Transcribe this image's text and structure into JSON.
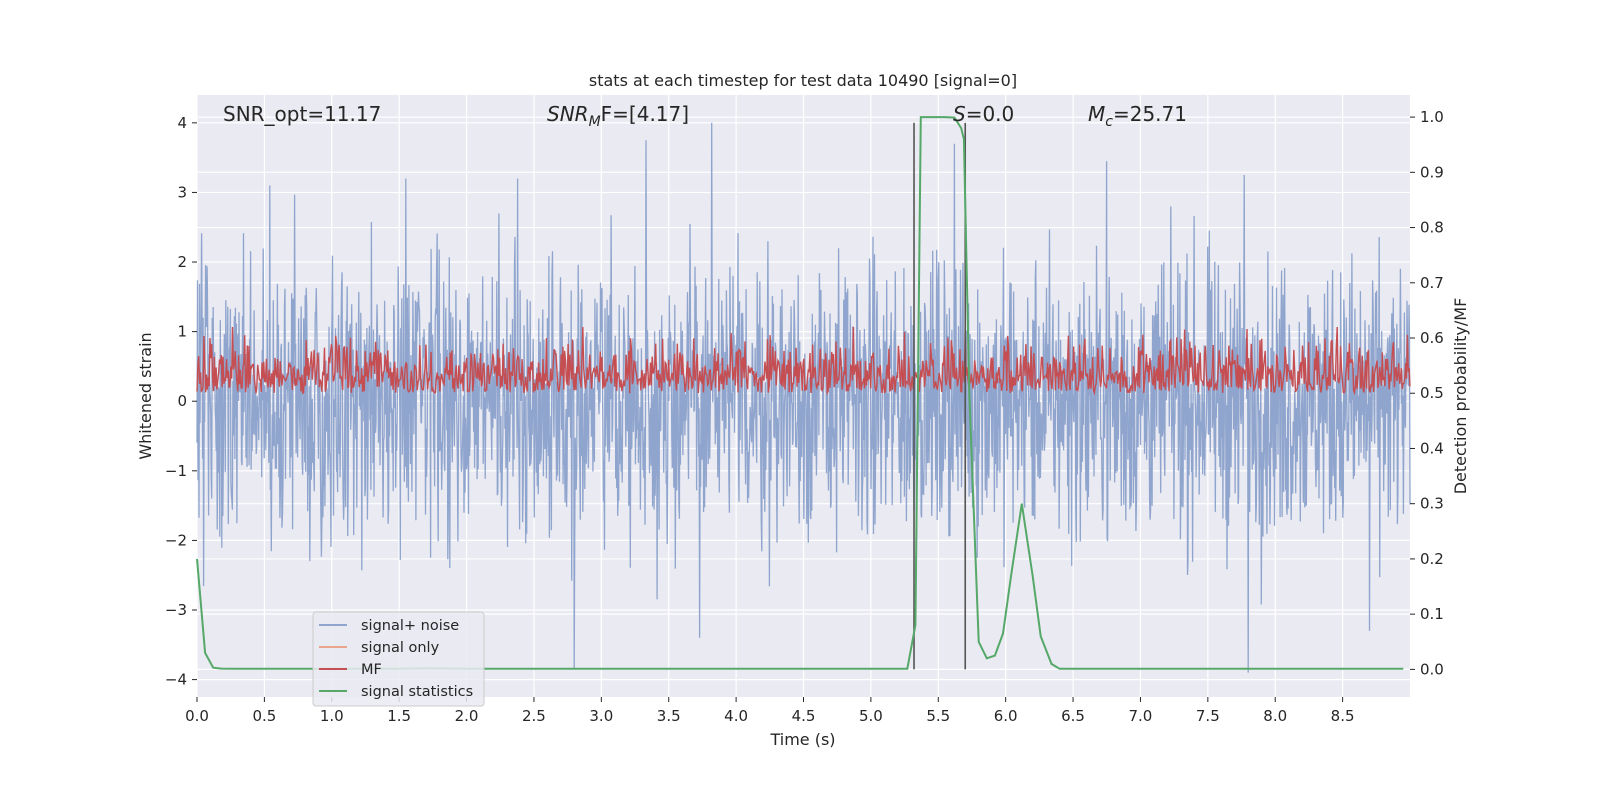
{
  "chart_data": {
    "type": "line",
    "title": "stats at each timestep for test data 10490 [signal=0]",
    "xlabel": "Time (s)",
    "ylabel_left": "Whitened strain",
    "ylabel_right": "Detection probability/MF",
    "xlim": [
      0.0,
      9.0
    ],
    "ylim_left": [
      -4.25,
      4.4
    ],
    "ylim_right": [
      -0.05,
      1.04
    ],
    "x_ticks": [
      "0.0",
      "0.5",
      "1.0",
      "1.5",
      "2.0",
      "2.5",
      "3.0",
      "3.5",
      "4.0",
      "4.5",
      "5.0",
      "5.5",
      "6.0",
      "6.5",
      "7.0",
      "7.5",
      "8.0",
      "8.5"
    ],
    "y_ticks_left": [
      4,
      3,
      2,
      1,
      0,
      -1,
      -2,
      -3,
      -4
    ],
    "y_ticks_right": [
      "1.0",
      "0.9",
      "0.8",
      "0.7",
      "0.6",
      "0.5",
      "0.4",
      "0.3",
      "0.2",
      "0.1",
      "0.0"
    ],
    "grid": true,
    "annotations": {
      "snr_opt": "SNR_opt=11.17",
      "snr_mf_main": "SNR",
      "snr_mf_sub": "M",
      "snr_mf_rest": "F=[4.17]",
      "s_main": "S",
      "s_rest": "=0.0",
      "mc_main": "M",
      "mc_sub": "c",
      "mc_rest": "=25.71"
    },
    "legend": {
      "placement": "lower-left",
      "entries": [
        {
          "label": "signal+ noise",
          "color": "#8fa5cd"
        },
        {
          "label": "signal only",
          "color": "#e8a58c"
        },
        {
          "label": "MF",
          "color": "#c44e52"
        },
        {
          "label": "signal statistics",
          "color": "#55a868"
        }
      ]
    },
    "series": [
      {
        "name": "signal+ noise",
        "axis": "left",
        "color": "#8fa5cd",
        "peak_points": [
          [
            2.8,
            -3.85
          ],
          [
            3.82,
            4.0
          ],
          [
            3.33,
            3.75
          ],
          [
            5.62,
            3.7
          ],
          [
            7.77,
            3.25
          ],
          [
            0.54,
            3.1
          ],
          [
            1.55,
            3.2
          ],
          [
            2.38,
            3.2
          ],
          [
            3.73,
            -3.4
          ],
          [
            6.75,
            3.45
          ],
          [
            8.7,
            -3.3
          ],
          [
            7.8,
            -3.9
          ]
        ],
        "envelope": {
          "typical_max": 2.3,
          "typical_min": -2.3,
          "min": -3.9,
          "max": 4.0
        }
      },
      {
        "name": "MF",
        "axis": "right",
        "color": "#c44e52",
        "envelope": {
          "min": 0.5,
          "typical_max": 0.57,
          "max": 0.62
        }
      },
      {
        "name": "signal statistics",
        "axis": "right",
        "color": "#55a868",
        "x": [
          0.0,
          0.06,
          0.12,
          0.18,
          0.3,
          0.45,
          0.6,
          0.8,
          1.0,
          1.5,
          1.7,
          2.0,
          3.0,
          4.0,
          5.0,
          5.27,
          5.33,
          5.37,
          5.45,
          5.5,
          5.55,
          5.62,
          5.67,
          5.69,
          5.73,
          5.8,
          5.86,
          5.92,
          5.98,
          6.04,
          6.12,
          6.2,
          6.26,
          6.34,
          6.4,
          6.5,
          7.0,
          8.0,
          8.95
        ],
        "y": [
          0.2,
          0.03,
          0.003,
          0.0015,
          0.001,
          0.001,
          0.001,
          0.001,
          0.001,
          0.001,
          0.002,
          0.001,
          0.001,
          0.001,
          0.001,
          0.001,
          0.08,
          1.0,
          1.0,
          1.0,
          1.0,
          0.999,
          0.98,
          0.96,
          0.5,
          0.05,
          0.02,
          0.025,
          0.065,
          0.17,
          0.3,
          0.17,
          0.06,
          0.01,
          0.001,
          0.001,
          0.001,
          0.001,
          0.001
        ]
      }
    ],
    "vertical_markers": [
      {
        "x": 5.32,
        "ymax_left": 4.0,
        "color": "#555555"
      },
      {
        "x": 5.7,
        "ymax_left": 4.0,
        "color": "#555555"
      }
    ]
  }
}
